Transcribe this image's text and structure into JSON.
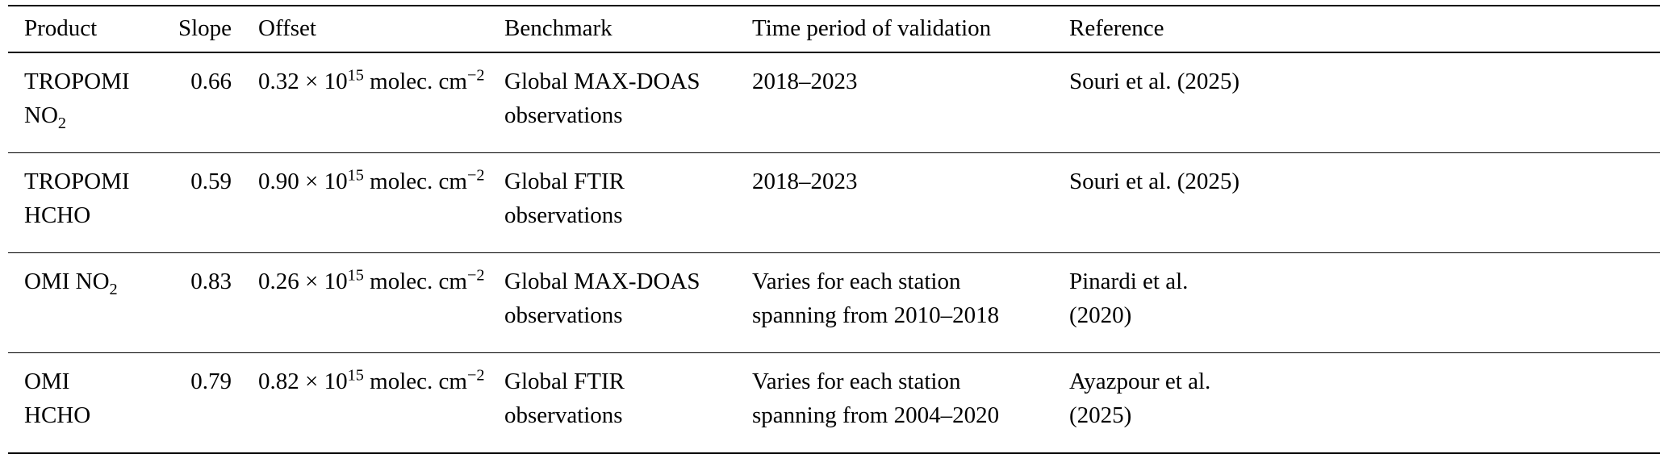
{
  "page": {
    "background_color": "#ffffff",
    "text_color": "#000000"
  },
  "table": {
    "headers": [
      "Product",
      "Slope",
      "Offset",
      "Benchmark",
      "Time period of validation",
      "Reference"
    ],
    "rows": [
      {
        "product": [
          {
            "t": "TROPOMI"
          },
          {
            "s": "br"
          },
          {
            "t": "NO"
          },
          {
            "t": "2",
            "s": "sub"
          }
        ],
        "slope": "0.66",
        "offset": [
          {
            "t": "0.32 × 10"
          },
          {
            "t": "15",
            "s": "sup"
          },
          {
            "t": " molec. cm"
          },
          {
            "t": "−2",
            "s": "sup"
          }
        ],
        "benchmark": [
          {
            "t": "Global MAX-DOAS"
          },
          {
            "s": "br"
          },
          {
            "t": "observations"
          }
        ],
        "time_period": [
          {
            "t": "2018–2023"
          }
        ],
        "reference": [
          {
            "t": "Souri et al. (2025)"
          }
        ]
      },
      {
        "product": [
          {
            "t": "TROPOMI"
          },
          {
            "s": "br"
          },
          {
            "t": "HCHO"
          }
        ],
        "slope": "0.59",
        "offset": [
          {
            "t": "0.90 × 10"
          },
          {
            "t": "15",
            "s": "sup"
          },
          {
            "t": " molec. cm"
          },
          {
            "t": "−2",
            "s": "sup"
          }
        ],
        "benchmark": [
          {
            "t": "Global FTIR"
          },
          {
            "s": "br"
          },
          {
            "t": "observations"
          }
        ],
        "time_period": [
          {
            "t": "2018–2023"
          }
        ],
        "reference": [
          {
            "t": "Souri et al. (2025)"
          }
        ]
      },
      {
        "product": [
          {
            "t": "OMI NO"
          },
          {
            "t": "2",
            "s": "sub"
          }
        ],
        "slope": "0.83",
        "offset": [
          {
            "t": "0.26 × 10"
          },
          {
            "t": "15",
            "s": "sup"
          },
          {
            "t": " molec. cm"
          },
          {
            "t": "−2",
            "s": "sup"
          }
        ],
        "benchmark": [
          {
            "t": "Global MAX-DOAS"
          },
          {
            "s": "br"
          },
          {
            "t": "observations"
          }
        ],
        "time_period": [
          {
            "t": "Varies for each station"
          },
          {
            "s": "br"
          },
          {
            "t": "spanning from 2010–2018"
          }
        ],
        "reference": [
          {
            "t": "Pinardi et al."
          },
          {
            "s": "br"
          },
          {
            "t": "(2020)"
          }
        ]
      },
      {
        "product": [
          {
            "t": "OMI"
          },
          {
            "s": "br"
          },
          {
            "t": "HCHO"
          }
        ],
        "slope": "0.79",
        "offset": [
          {
            "t": "0.82 × 10"
          },
          {
            "t": "15",
            "s": "sup"
          },
          {
            "t": " molec. cm"
          },
          {
            "t": "−2",
            "s": "sup"
          }
        ],
        "benchmark": [
          {
            "t": "Global FTIR"
          },
          {
            "s": "br"
          },
          {
            "t": "observations"
          }
        ],
        "time_period": [
          {
            "t": "Varies for each station"
          },
          {
            "s": "br"
          },
          {
            "t": "spanning from 2004–2020"
          }
        ],
        "reference": [
          {
            "t": "Ayazpour et al."
          },
          {
            "s": "br"
          },
          {
            "t": "(2025)"
          }
        ]
      }
    ]
  }
}
